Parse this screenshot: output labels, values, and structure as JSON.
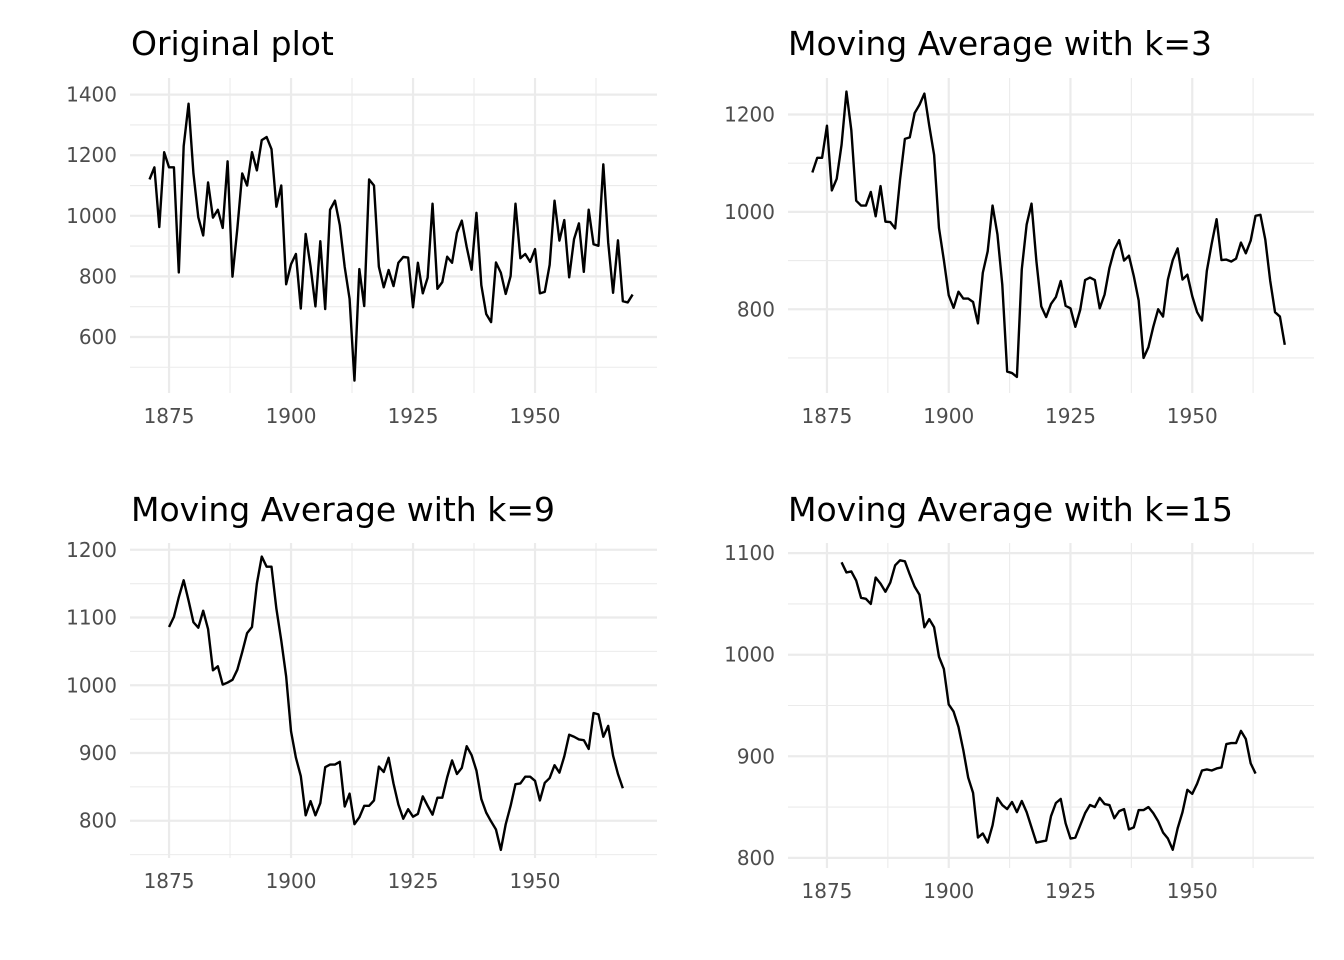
{
  "chart_data": [
    {
      "type": "line",
      "title": "Original plot",
      "xlim": [
        1867,
        1975
      ],
      "ylim": [
        415,
        1455
      ],
      "xticks": [
        1875,
        1900,
        1925,
        1950
      ],
      "xtick_labels": [
        "1875",
        "1900",
        "1925",
        "1950"
      ],
      "yticks": [
        600,
        800,
        1000,
        1200,
        1400
      ],
      "ytick_labels": [
        "600",
        "800",
        "1000",
        "1200",
        "1400"
      ],
      "grid": true,
      "start": 1871,
      "values": [
        1120,
        1160,
        963,
        1210,
        1160,
        1160,
        813,
        1230,
        1370,
        1140,
        995,
        935,
        1110,
        994,
        1020,
        960,
        1180,
        799,
        958,
        1140,
        1100,
        1210,
        1150,
        1250,
        1260,
        1220,
        1030,
        1100,
        774,
        840,
        874,
        694,
        940,
        833,
        701,
        916,
        692,
        1020,
        1050,
        969,
        831,
        726,
        456,
        824,
        702,
        1120,
        1100,
        832,
        764,
        821,
        768,
        845,
        864,
        862,
        698,
        845,
        744,
        796,
        1040,
        759,
        781,
        865,
        845,
        944,
        984,
        897,
        822,
        1010,
        771,
        676,
        649,
        846,
        812,
        742,
        801,
        1040,
        860,
        874,
        848,
        890,
        744,
        749,
        838,
        1050,
        918,
        986,
        797,
        923,
        975,
        815,
        1020,
        906,
        901,
        1170,
        912,
        746,
        919,
        718,
        714,
        740
      ]
    },
    {
      "type": "line",
      "title": "Moving Average with k=3",
      "xlim": [
        1867,
        1975
      ],
      "ylim": [
        628,
        1275
      ],
      "xticks": [
        1875,
        1900,
        1925,
        1950
      ],
      "xtick_labels": [
        "1875",
        "1900",
        "1925",
        "1950"
      ],
      "yticks": [
        800,
        1000,
        1200
      ],
      "ytick_labels": [
        "800",
        "1000",
        "1200"
      ],
      "grid": true,
      "start": 1872,
      "values": [
        1081,
        1111,
        1111,
        1177,
        1044,
        1068,
        1138,
        1247,
        1168,
        1023,
        1013,
        1013,
        1041,
        991,
        1053,
        980,
        979,
        966,
        1066,
        1150,
        1153,
        1203,
        1220,
        1243,
        1177,
        1117,
        967,
        901,
        829,
        803,
        836,
        822,
        822,
        815,
        771,
        875,
        919,
        1013,
        954,
        850,
        672,
        669,
        661,
        882,
        974,
        1017,
        899,
        806,
        784,
        811,
        825,
        858,
        807,
        802,
        764,
        799,
        860,
        865,
        860,
        802,
        830,
        885,
        922,
        942,
        900,
        910,
        868,
        818,
        700,
        722,
        764,
        800,
        785,
        861,
        901,
        925,
        861,
        871,
        827,
        794,
        777,
        879,
        935,
        985,
        901,
        902,
        898,
        904,
        937,
        915,
        941,
        992,
        994,
        943,
        859,
        794,
        785,
        727
      ]
    },
    {
      "type": "line",
      "title": "Moving Average with k=9",
      "xlim": [
        1867,
        1975
      ],
      "ylim": [
        745,
        1210
      ],
      "xticks": [
        1875,
        1900,
        1925,
        1950
      ],
      "xtick_labels": [
        "1875",
        "1900",
        "1925",
        "1950"
      ],
      "yticks": [
        800,
        900,
        1000,
        1100,
        1200
      ],
      "ytick_labels": [
        "800",
        "900",
        "1000",
        "1100",
        "1200"
      ],
      "grid": true,
      "start": 1875,
      "values": [
        1086,
        1101,
        1130,
        1155,
        1125,
        1093,
        1085,
        1110,
        1083,
        1022,
        1028,
        1001,
        1004,
        1008,
        1023,
        1049,
        1077,
        1086,
        1150,
        1190,
        1175,
        1175,
        1113,
        1066,
        1013,
        932,
        893,
        866,
        808,
        829,
        808,
        826,
        879,
        883,
        883,
        887,
        821,
        840,
        795,
        805,
        822,
        822,
        830,
        880,
        872,
        893,
        855,
        824,
        803,
        817,
        806,
        810,
        836,
        822,
        809,
        834,
        834,
        864,
        889,
        869,
        878,
        910,
        897,
        874,
        832,
        812,
        799,
        787,
        757,
        795,
        822,
        854,
        855,
        865,
        865,
        859,
        830,
        856,
        863,
        882,
        871,
        895,
        927,
        924,
        920,
        919,
        906,
        959,
        957,
        924,
        940,
        896,
        869,
        848
      ]
    },
    {
      "type": "line",
      "title": "Moving Average with k=15",
      "xlim": [
        1867,
        1975
      ],
      "ylim": [
        790,
        1110
      ],
      "xticks": [
        1875,
        1900,
        1925,
        1950
      ],
      "xtick_labels": [
        "1875",
        "1900",
        "1925",
        "1950"
      ],
      "yticks": [
        800,
        900,
        1000,
        1100
      ],
      "ytick_labels": [
        "800",
        "900",
        "1000",
        "1100"
      ],
      "grid": true,
      "start": 1878,
      "values": [
        1091,
        1081,
        1082,
        1073,
        1056,
        1055,
        1050,
        1076,
        1070,
        1062,
        1071,
        1088,
        1093,
        1092,
        1079,
        1067,
        1059,
        1027,
        1035,
        1027,
        998,
        986,
        951,
        944,
        929,
        906,
        879,
        864,
        820,
        824,
        815,
        832,
        859,
        852,
        848,
        855,
        845,
        856,
        845,
        830,
        815,
        816,
        817,
        841,
        854,
        858,
        834,
        819,
        820,
        832,
        844,
        852,
        850,
        859,
        853,
        852,
        839,
        846,
        848,
        828,
        830,
        847,
        847,
        850,
        844,
        836,
        825,
        819,
        808,
        829,
        845,
        867,
        863,
        873,
        886,
        887,
        886,
        888,
        889,
        912,
        913,
        913,
        925,
        917,
        893,
        883
      ]
    }
  ]
}
